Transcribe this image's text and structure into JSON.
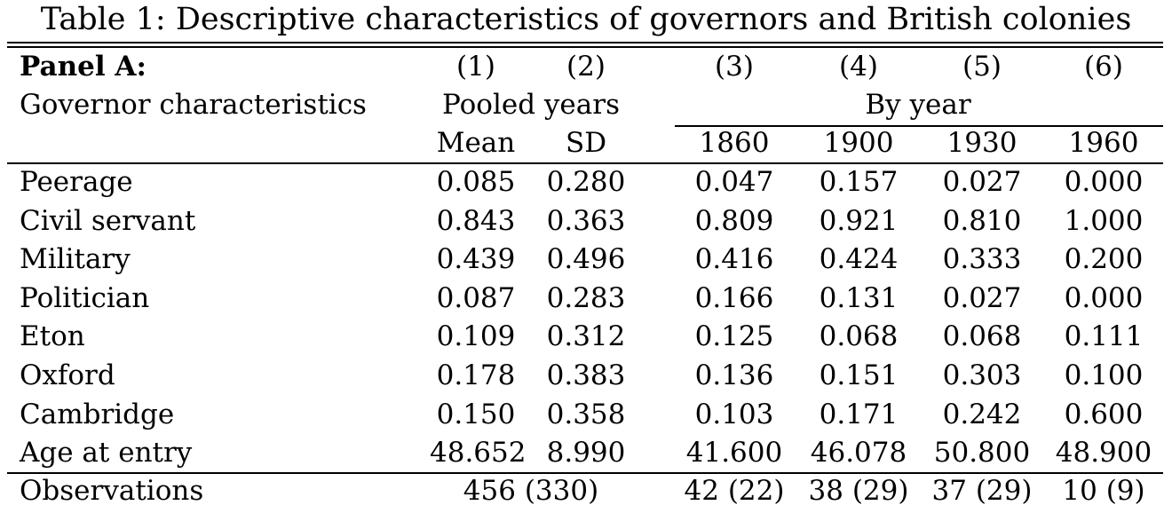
{
  "caption": "Table 1: Descriptive characteristics of governors and British colonies",
  "table": {
    "panel_label": "Panel A:",
    "column_numbers": [
      "(1)",
      "(2)",
      "(3)",
      "(4)",
      "(5)",
      "(6)"
    ],
    "row_header_title": "Governor characteristics",
    "group_headers": {
      "pooled": "Pooled years",
      "by_year": "By year"
    },
    "sub_headers": [
      "Mean",
      "SD",
      "1860",
      "1900",
      "1930",
      "1960"
    ],
    "rows": [
      {
        "label": "Peerage",
        "values": [
          "0.085",
          "0.280",
          "0.047",
          "0.157",
          "0.027",
          "0.000"
        ]
      },
      {
        "label": "Civil servant",
        "values": [
          "0.843",
          "0.363",
          "0.809",
          "0.921",
          "0.810",
          "1.000"
        ]
      },
      {
        "label": "Military",
        "values": [
          "0.439",
          "0.496",
          "0.416",
          "0.424",
          "0.333",
          "0.200"
        ]
      },
      {
        "label": "Politician",
        "values": [
          "0.087",
          "0.283",
          "0.166",
          "0.131",
          "0.027",
          "0.000"
        ]
      },
      {
        "label": "Eton",
        "values": [
          "0.109",
          "0.312",
          "0.125",
          "0.068",
          "0.068",
          "0.111"
        ]
      },
      {
        "label": "Oxford",
        "values": [
          "0.178",
          "0.383",
          "0.136",
          "0.151",
          "0.303",
          "0.100"
        ]
      },
      {
        "label": "Cambridge",
        "values": [
          "0.150",
          "0.358",
          "0.103",
          "0.171",
          "0.242",
          "0.600"
        ]
      },
      {
        "label": "Age at entry",
        "values": [
          "48.652",
          "8.990",
          "41.600",
          "46.078",
          "50.800",
          "48.900"
        ]
      }
    ],
    "observations": {
      "label": "Observations",
      "pooled": "456 (330)",
      "by_year": [
        "42 (22)",
        "38 (29)",
        "37 (29)",
        "10 (9)"
      ]
    }
  }
}
